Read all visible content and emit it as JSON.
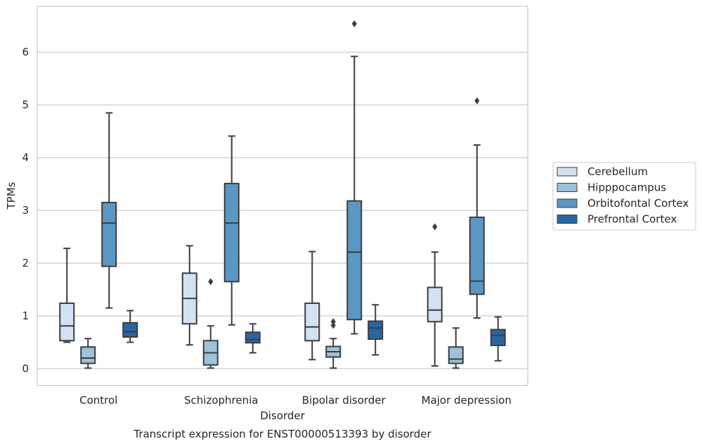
{
  "chart_data": {
    "type": "boxplot",
    "title": "",
    "caption": "Transcript expression for ENST00000513393 by disorder",
    "xlabel": "Disorder",
    "ylabel": "TPMs",
    "ylim": [
      -0.32,
      6.87
    ],
    "yticks": [
      0,
      1,
      2,
      3,
      4,
      5,
      6
    ],
    "grid": "horizontal",
    "legend_position": "right",
    "categories": [
      "Control",
      "Schizophrenia",
      "Bipolar disorder",
      "Major depression"
    ],
    "series": [
      {
        "name": "Cerebellum",
        "color": "#d2e2f0",
        "boxes": [
          {
            "whislo": 0.5,
            "q1": 0.53,
            "med": 0.81,
            "q3": 1.24,
            "whishi": 2.28,
            "fliers": []
          },
          {
            "whislo": 0.45,
            "q1": 0.85,
            "med": 1.33,
            "q3": 1.81,
            "whishi": 2.33,
            "fliers": []
          },
          {
            "whislo": 0.17,
            "q1": 0.53,
            "med": 0.79,
            "q3": 1.24,
            "whishi": 2.22,
            "fliers": []
          },
          {
            "whislo": 0.05,
            "q1": 0.89,
            "med": 1.11,
            "q3": 1.54,
            "whishi": 2.21,
            "fliers": [
              2.69
            ]
          }
        ]
      },
      {
        "name": "Hipppocampus",
        "color": "#9cc2dc",
        "boxes": [
          {
            "whislo": 0.01,
            "q1": 0.1,
            "med": 0.2,
            "q3": 0.41,
            "whishi": 0.57,
            "fliers": []
          },
          {
            "whislo": 0.01,
            "q1": 0.07,
            "med": 0.3,
            "q3": 0.53,
            "whishi": 0.81,
            "fliers": [
              1.65
            ]
          },
          {
            "whislo": 0.01,
            "q1": 0.22,
            "med": 0.32,
            "q3": 0.42,
            "whishi": 0.57,
            "fliers": [
              0.82,
              0.89
            ]
          },
          {
            "whislo": 0.01,
            "q1": 0.1,
            "med": 0.18,
            "q3": 0.41,
            "whishi": 0.77,
            "fliers": []
          }
        ]
      },
      {
        "name": "Orbitofontal Cortex",
        "color": "#5b97c4",
        "boxes": [
          {
            "whislo": 1.15,
            "q1": 1.94,
            "med": 2.76,
            "q3": 3.15,
            "whishi": 4.85,
            "fliers": []
          },
          {
            "whislo": 0.83,
            "q1": 1.65,
            "med": 2.76,
            "q3": 3.51,
            "whishi": 4.41,
            "fliers": []
          },
          {
            "whislo": 0.66,
            "q1": 0.93,
            "med": 2.21,
            "q3": 3.18,
            "whishi": 5.92,
            "fliers": [
              6.54
            ]
          },
          {
            "whislo": 0.96,
            "q1": 1.41,
            "med": 1.66,
            "q3": 2.87,
            "whishi": 4.24,
            "fliers": [
              5.08
            ]
          }
        ]
      },
      {
        "name": "Prefrontal Cortex",
        "color": "#2a65a3",
        "boxes": [
          {
            "whislo": 0.5,
            "q1": 0.6,
            "med": 0.7,
            "q3": 0.87,
            "whishi": 1.1,
            "fliers": []
          },
          {
            "whislo": 0.3,
            "q1": 0.49,
            "med": 0.55,
            "q3": 0.69,
            "whishi": 0.85,
            "fliers": []
          },
          {
            "whislo": 0.26,
            "q1": 0.56,
            "med": 0.77,
            "q3": 0.9,
            "whishi": 1.21,
            "fliers": []
          },
          {
            "whislo": 0.15,
            "q1": 0.44,
            "med": 0.63,
            "q3": 0.74,
            "whishi": 0.98,
            "fliers": []
          }
        ]
      }
    ]
  }
}
